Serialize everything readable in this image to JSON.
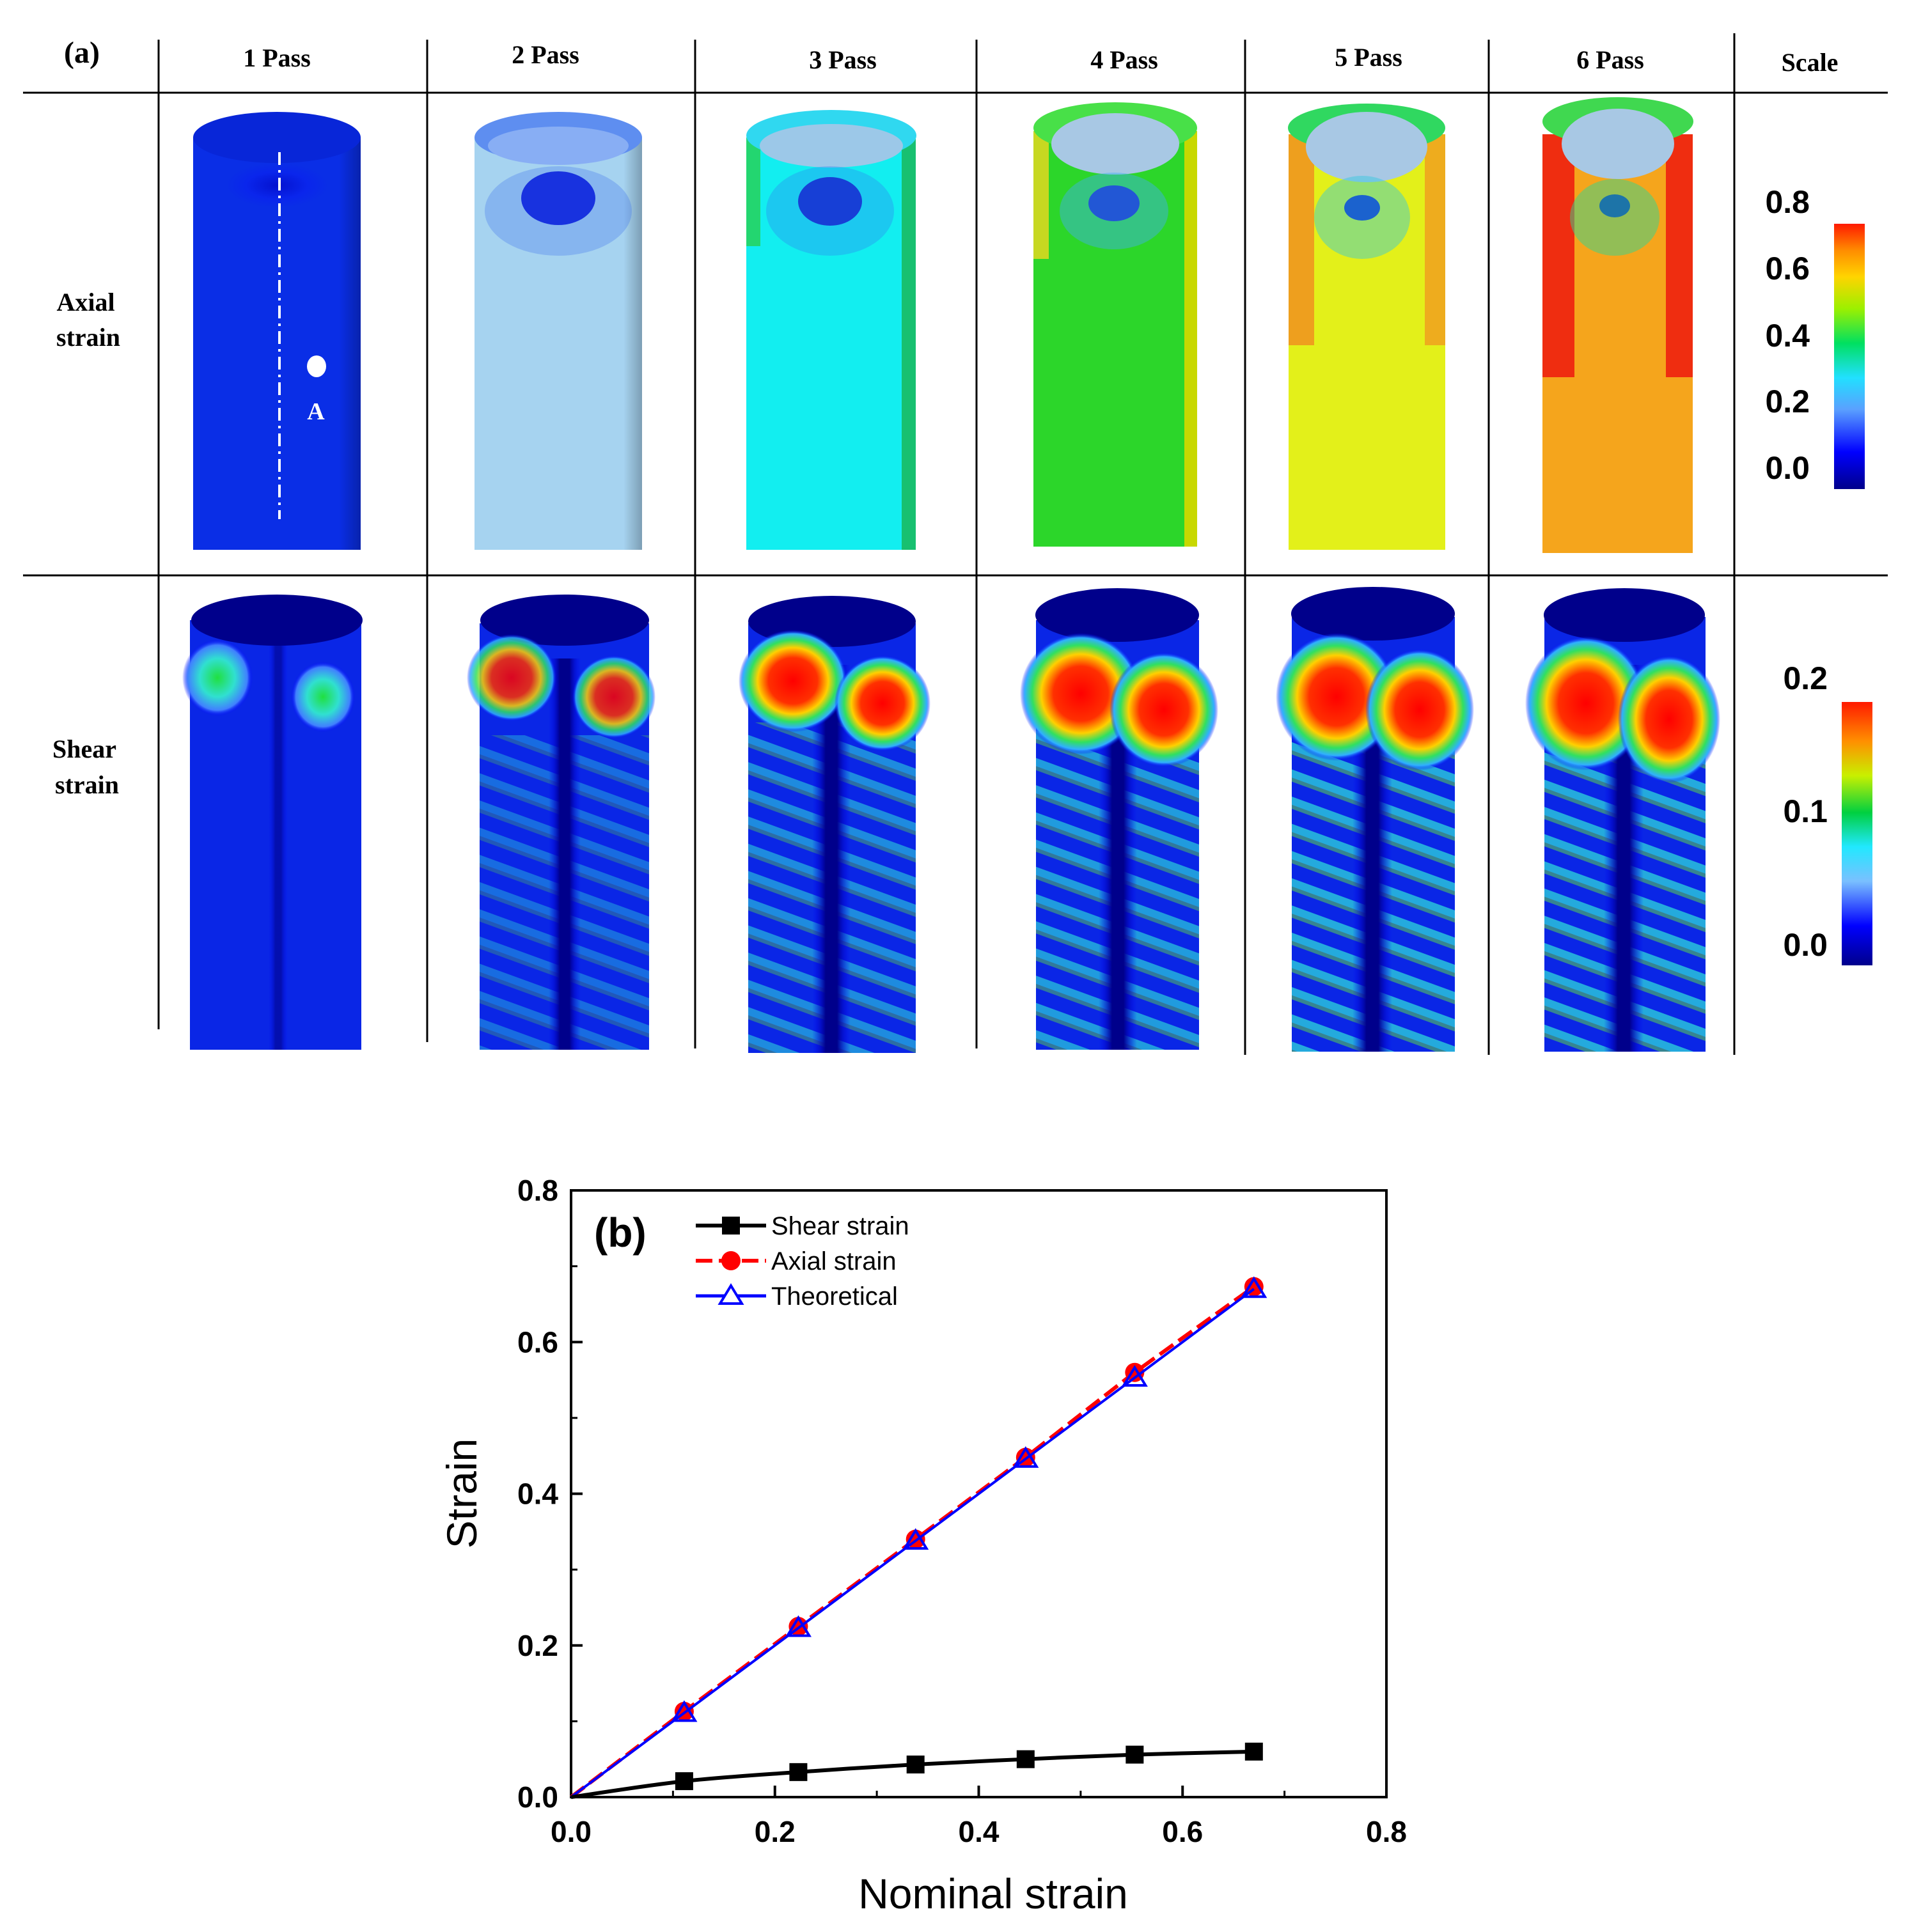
{
  "panel_a": {
    "label": "(a)",
    "column_headers": [
      "1 Pass",
      "2 Pass",
      "3 Pass",
      "4 Pass",
      "5 Pass",
      "6 Pass",
      "Scale"
    ],
    "row_headers": [
      {
        "line1": "Axial",
        "line2": "strain"
      },
      {
        "line1": "Shear",
        "line2": "strain"
      }
    ],
    "point_label": "A",
    "axial_scale": {
      "ticks": [
        "0.8",
        "0.6",
        "0.4",
        "0.2",
        "0.0"
      ]
    },
    "shear_scale": {
      "ticks": [
        "0.2",
        "0.1",
        "0.0"
      ]
    },
    "axial_pass_colors": [
      "#0a2ee6",
      "#a6d3f0",
      "#12eef0",
      "#2cd62a",
      "#e3f01a",
      "#f5a51c"
    ],
    "colormap": [
      "#00008b",
      "#0000ff",
      "#21c8ff",
      "#00ff7f",
      "#30d000",
      "#ffff00",
      "#ff8c00",
      "#ff0000"
    ]
  },
  "chart_data": {
    "type": "line",
    "panel_label": "(b)",
    "xlabel": "Nominal strain",
    "ylabel": "Strain",
    "xlim": [
      0.0,
      0.8
    ],
    "ylim": [
      0.0,
      0.8
    ],
    "xticks": [
      "0.0",
      "0.2",
      "0.4",
      "0.6",
      "0.8"
    ],
    "yticks": [
      "0.0",
      "0.2",
      "0.4",
      "0.6",
      "0.8"
    ],
    "legend_position": "top-left",
    "series": [
      {
        "name": "Shear strain",
        "color": "#000000",
        "marker": "square",
        "x": [
          0.0,
          0.111,
          0.223,
          0.338,
          0.446,
          0.553,
          0.67
        ],
        "y": [
          0.0,
          0.021,
          0.033,
          0.043,
          0.05,
          0.056,
          0.06
        ]
      },
      {
        "name": "Axial strain",
        "color": "#ff0000",
        "marker": "circle",
        "x": [
          0.0,
          0.111,
          0.223,
          0.338,
          0.446,
          0.553,
          0.67
        ],
        "y": [
          0.0,
          0.113,
          0.225,
          0.34,
          0.448,
          0.56,
          0.673
        ]
      },
      {
        "name": "Theoretical",
        "color": "#0000ff",
        "marker": "triangle",
        "x": [
          0.0,
          0.111,
          0.223,
          0.338,
          0.446,
          0.553,
          0.67
        ],
        "y": [
          0.0,
          0.111,
          0.223,
          0.338,
          0.446,
          0.553,
          0.67
        ]
      }
    ]
  }
}
